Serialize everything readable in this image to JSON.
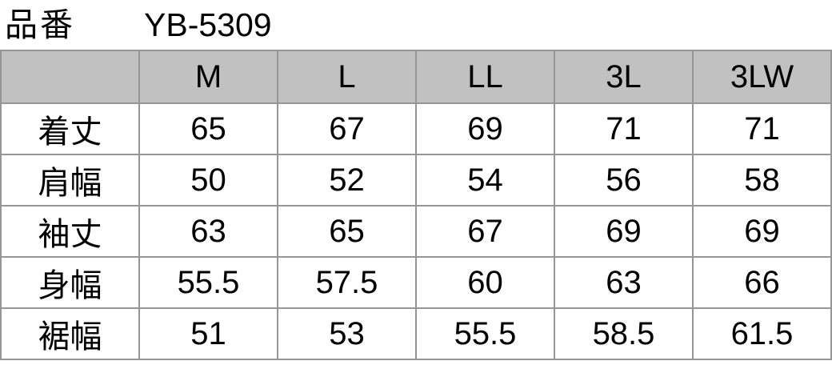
{
  "header": {
    "label": "品番",
    "value": "YB-5309"
  },
  "size_table": {
    "columns": [
      "",
      "M",
      "L",
      "LL",
      "3L",
      "3LW"
    ],
    "rows": [
      {
        "label": "着丈",
        "values": [
          "65",
          "67",
          "69",
          "71",
          "71"
        ]
      },
      {
        "label": "肩幅",
        "values": [
          "50",
          "52",
          "54",
          "56",
          "58"
        ]
      },
      {
        "label": "袖丈",
        "values": [
          "63",
          "65",
          "67",
          "69",
          "69"
        ]
      },
      {
        "label": "身幅",
        "values": [
          "55.5",
          "57.5",
          "60",
          "63",
          "66"
        ]
      },
      {
        "label": "裾幅",
        "values": [
          "51",
          "53",
          "55.5",
          "58.5",
          "61.5"
        ]
      }
    ],
    "colors": {
      "header_bg": "#c1c1c1",
      "border": "#969696",
      "text": "#000000",
      "body_bg": "#ffffff"
    }
  },
  "chart_data": {
    "type": "table",
    "title": "品番 YB-5309",
    "columns": [
      "",
      "M",
      "L",
      "LL",
      "3L",
      "3LW"
    ],
    "row_labels": [
      "着丈",
      "肩幅",
      "袖丈",
      "身幅",
      "裾幅"
    ],
    "rows": [
      [
        "着丈",
        65,
        67,
        69,
        71,
        71
      ],
      [
        "肩幅",
        50,
        52,
        54,
        56,
        58
      ],
      [
        "袖丈",
        63,
        65,
        67,
        69,
        69
      ],
      [
        "身幅",
        55.5,
        57.5,
        60,
        63,
        66
      ],
      [
        "裾幅",
        51,
        53,
        55.5,
        58.5,
        61.5
      ]
    ]
  }
}
